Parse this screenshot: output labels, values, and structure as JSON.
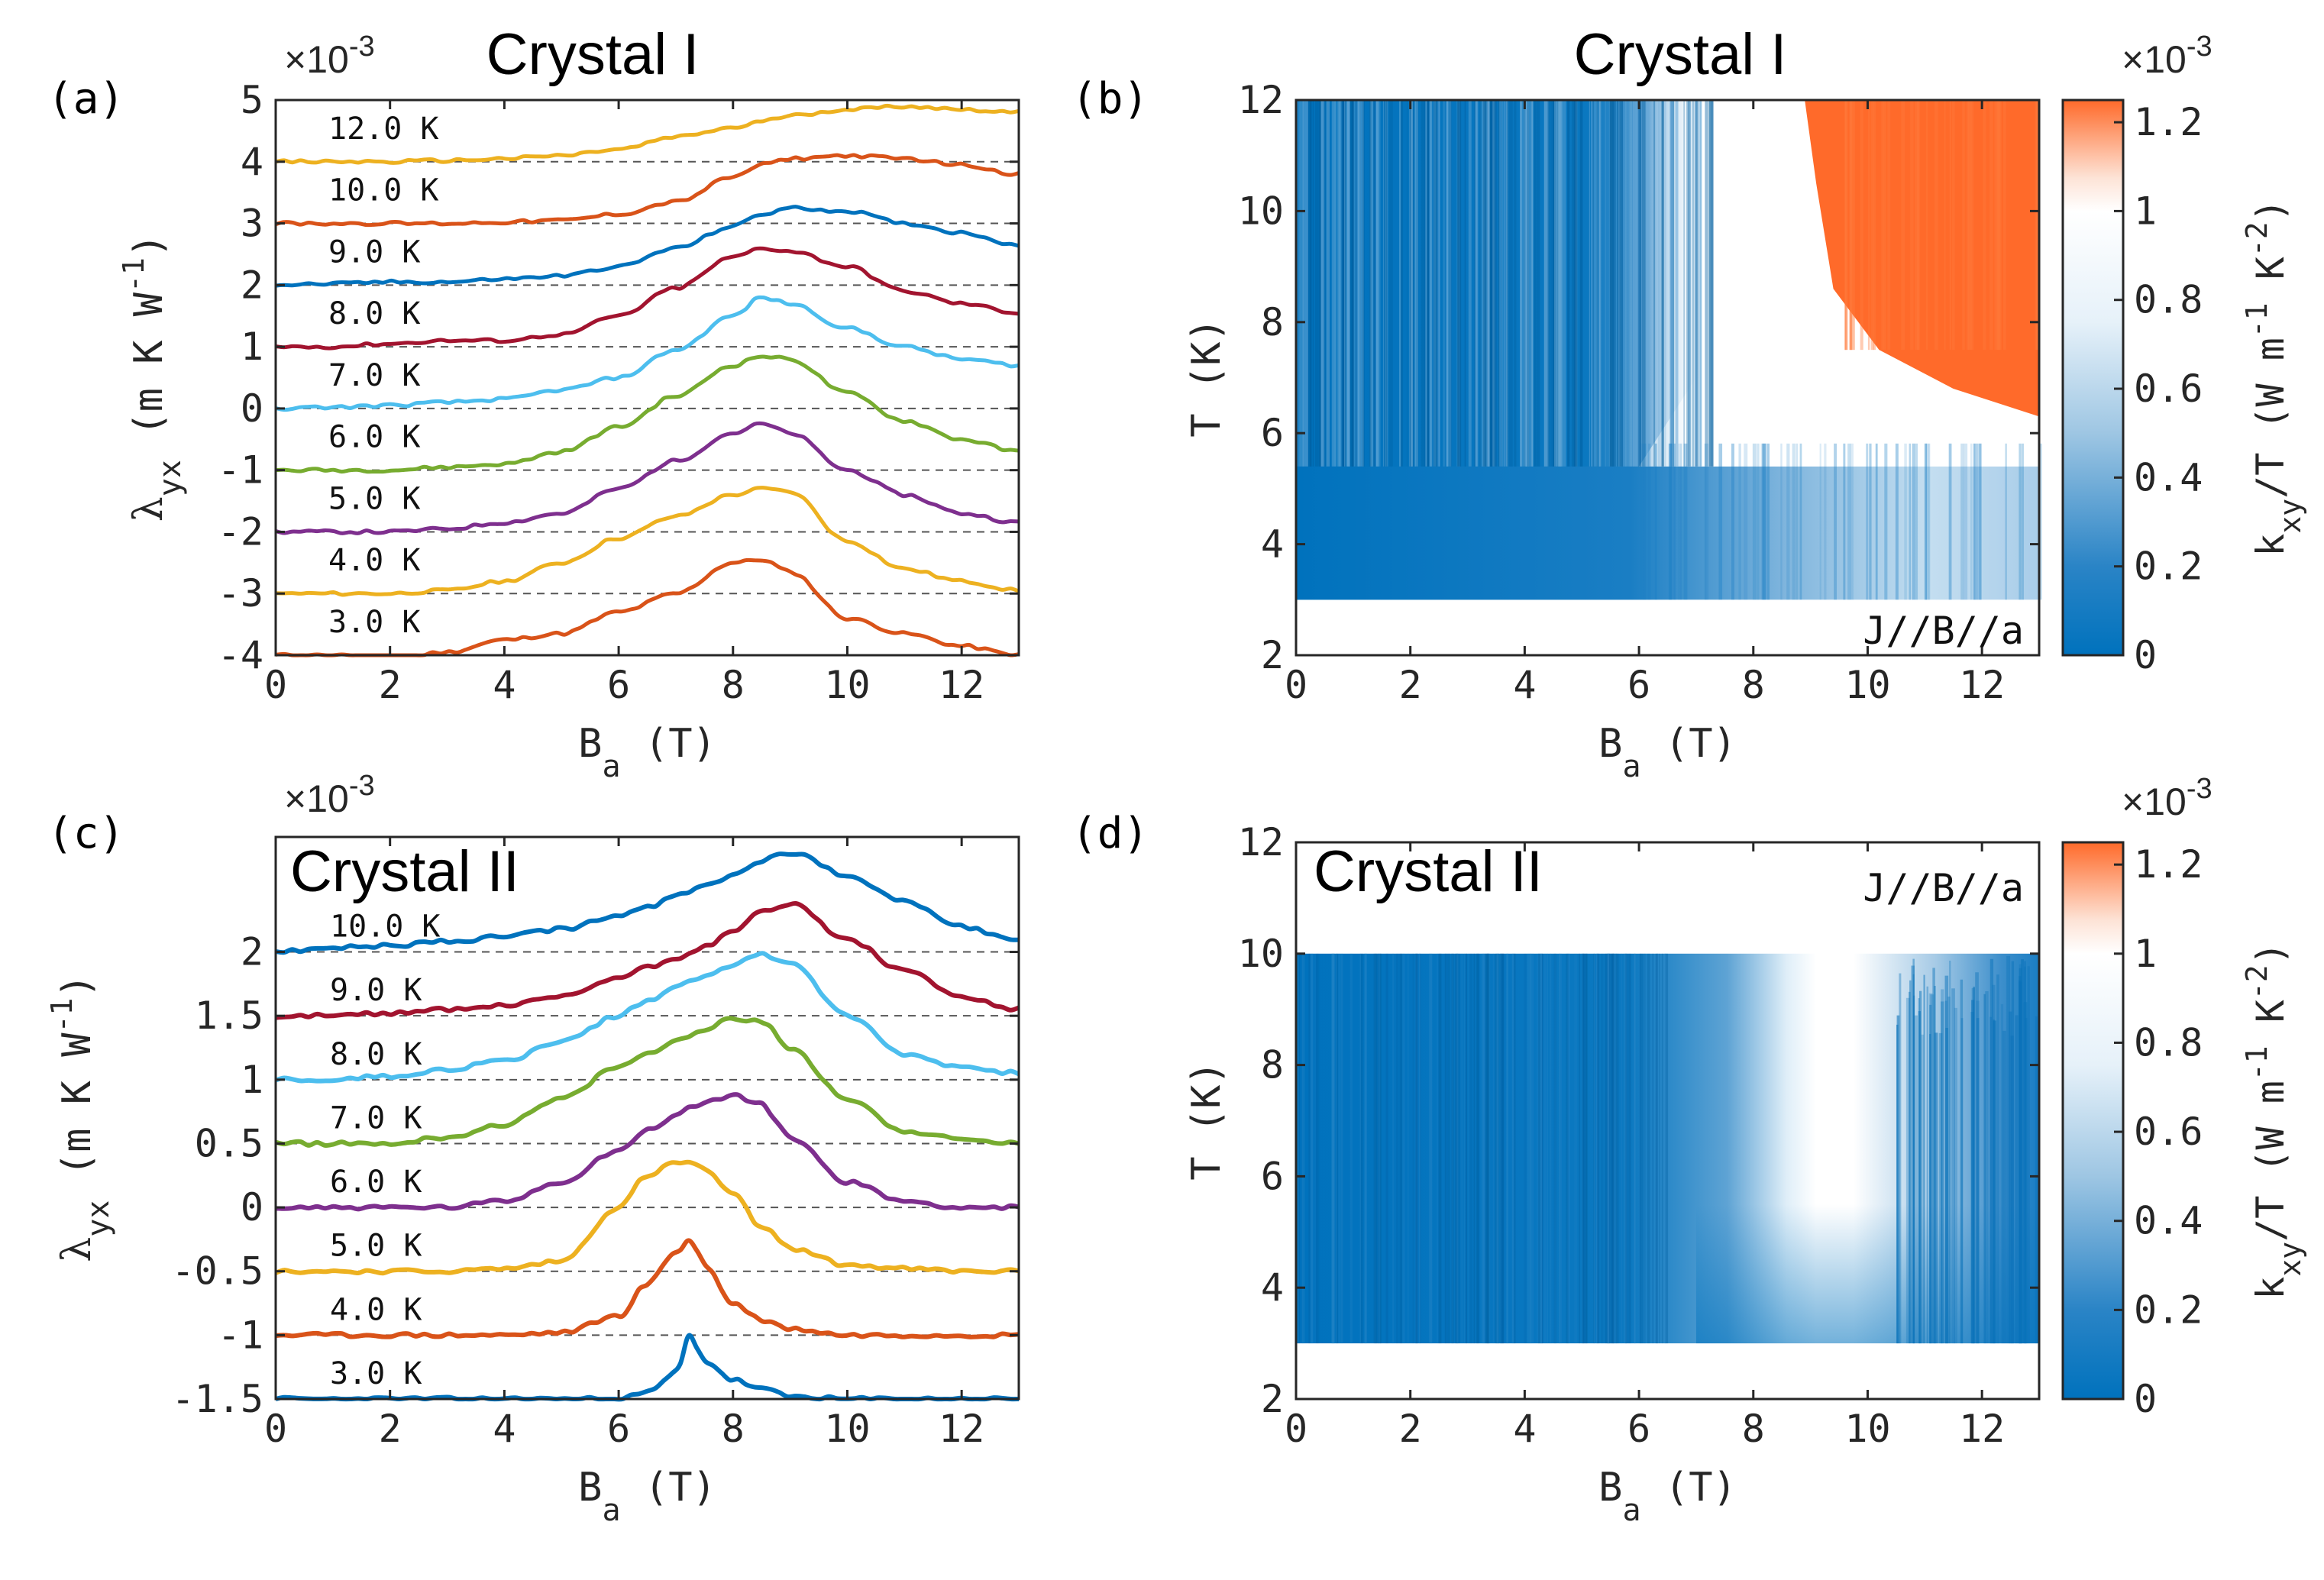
{
  "chart_data": [
    {
      "panel": "(a)",
      "type": "line",
      "title": "Crystal I",
      "xlabel_main": "B",
      "xlabel_sub": "a",
      "xlabel_unit": "(T)",
      "ylabel_main": "λ",
      "ylabel_sub": "yx",
      "ylabel_unit_pre": "(m K W",
      "ylabel_unit_sup": "-1",
      "ylabel_unit_post": ")",
      "exponent_label": "×10",
      "exponent_power": "-3",
      "xlim": [
        0,
        13
      ],
      "ylim": [
        -4,
        5
      ],
      "xticks": [
        0,
        2,
        4,
        6,
        8,
        10,
        12
      ],
      "xtick_labels": [
        "0",
        "2",
        "4",
        "6",
        "8",
        "10",
        "12"
      ],
      "yticks": [
        -4,
        -3,
        -2,
        -1,
        0,
        1,
        2,
        3,
        4,
        5
      ],
      "ytick_labels": [
        "-4",
        "-3",
        "-2",
        "-1",
        "0",
        "1",
        "2",
        "3",
        "4",
        "5"
      ],
      "x": [
        0,
        1,
        2,
        3,
        4,
        5,
        6,
        7,
        8,
        8.5,
        9,
        10,
        11,
        12,
        13
      ],
      "series": [
        {
          "name": "3.0 K",
          "offset": -4,
          "color": "#D95319",
          "values": [
            0,
            0,
            -0.05,
            0.05,
            0.25,
            0.35,
            0.7,
            1.0,
            1.5,
            1.55,
            1.35,
            0.6,
            0.35,
            0.15,
            0
          ]
        },
        {
          "name": "4.0 K",
          "offset": -3,
          "color": "#EDB120",
          "values": [
            0,
            0,
            0,
            0.05,
            0.2,
            0.5,
            0.9,
            1.25,
            1.6,
            1.7,
            1.65,
            0.85,
            0.4,
            0.2,
            0.05
          ]
        },
        {
          "name": "5.0 K",
          "offset": -2,
          "color": "#7E2F8E",
          "values": [
            0,
            0,
            0,
            0.05,
            0.15,
            0.3,
            0.7,
            1.15,
            1.6,
            1.75,
            1.6,
            1.0,
            0.6,
            0.3,
            0.15
          ]
        },
        {
          "name": "6.0 K",
          "offset": -1,
          "color": "#77AC30",
          "values": [
            0,
            0,
            0,
            0.05,
            0.1,
            0.3,
            0.7,
            1.2,
            1.7,
            1.85,
            1.8,
            1.25,
            0.8,
            0.5,
            0.3
          ]
        },
        {
          "name": "7.0 K",
          "offset": 0,
          "color": "#4DBEEE",
          "values": [
            0,
            0.02,
            0.05,
            0.1,
            0.15,
            0.3,
            0.5,
            0.95,
            1.5,
            1.8,
            1.7,
            1.3,
            1.0,
            0.8,
            0.7
          ]
        },
        {
          "name": "8.0 K",
          "offset": 1,
          "color": "#A2142F",
          "values": [
            0,
            0,
            0.05,
            0.1,
            0.1,
            0.2,
            0.5,
            0.95,
            1.45,
            1.6,
            1.55,
            1.3,
            0.9,
            0.7,
            0.55
          ]
        },
        {
          "name": "9.0 K",
          "offset": 2,
          "color": "#0072BD",
          "values": [
            0,
            0.02,
            0.05,
            0.05,
            0.1,
            0.15,
            0.3,
            0.6,
            0.95,
            1.15,
            1.25,
            1.2,
            1.0,
            0.85,
            0.65
          ]
        },
        {
          "name": "10.0 K",
          "offset": 3,
          "color": "#D95319",
          "values": [
            0,
            0,
            0,
            0,
            0.02,
            0.05,
            0.15,
            0.35,
            0.75,
            0.95,
            1.05,
            1.1,
            1.05,
            0.95,
            0.8
          ]
        },
        {
          "name": "12.0 K",
          "offset": 4,
          "color": "#EDB120",
          "values": [
            0,
            0,
            0,
            0.02,
            0.05,
            0.1,
            0.2,
            0.4,
            0.55,
            0.65,
            0.75,
            0.85,
            0.9,
            0.85,
            0.8
          ]
        }
      ]
    },
    {
      "panel": "(b)",
      "type": "heatmap",
      "title": "Crystal I",
      "annotation": "J//B//a",
      "xlabel_main": "B",
      "xlabel_sub": "a",
      "xlabel_unit": "(T)",
      "ylabel": "T (K)",
      "xlim": [
        0,
        13
      ],
      "ylim": [
        2,
        12
      ],
      "data_T_range": [
        3,
        12
      ],
      "xticks": [
        0,
        2,
        4,
        6,
        8,
        10,
        12
      ],
      "xtick_labels": [
        "0",
        "2",
        "4",
        "6",
        "8",
        "10",
        "12"
      ],
      "yticks": [
        2,
        4,
        6,
        8,
        10,
        12
      ],
      "ytick_labels": [
        "2",
        "4",
        "6",
        "8",
        "10",
        "12"
      ],
      "colorbar": {
        "range": [
          0,
          1.25
        ],
        "ticks": [
          0,
          0.2,
          0.4,
          0.6,
          0.8,
          1,
          1.2
        ],
        "tick_labels": [
          "0",
          "0.2",
          "0.4",
          "0.6",
          "0.8",
          "1",
          "1.2"
        ],
        "exponent_label": "×10",
        "exponent_power": "-3",
        "label_k": "k",
        "label_sub": "xy",
        "label_mid": "/T (W m",
        "label_sup1": "-1",
        "label_k2": " K",
        "label_sup2": "-2",
        "label_end": ")"
      }
    },
    {
      "panel": "(c)",
      "type": "line",
      "title": "Crystal II",
      "xlabel_main": "B",
      "xlabel_sub": "a",
      "xlabel_unit": "(T)",
      "ylabel_main": "λ",
      "ylabel_sub": "yx",
      "ylabel_unit_pre": "(m K W",
      "ylabel_unit_sup": "-1",
      "ylabel_unit_post": ")",
      "exponent_label": "×10",
      "exponent_power": "-3",
      "xlim": [
        0,
        13
      ],
      "ylim": [
        -1.5,
        2.9
      ],
      "xticks": [
        0,
        2,
        4,
        6,
        8,
        10,
        12
      ],
      "xtick_labels": [
        "0",
        "2",
        "4",
        "6",
        "8",
        "10",
        "12"
      ],
      "yticks": [
        -1.5,
        -1,
        -0.5,
        0,
        0.5,
        1,
        1.5,
        2
      ],
      "ytick_labels": [
        "-1.5",
        "-1",
        "-0.5",
        "0",
        "0.5",
        "1",
        "1.5",
        "2"
      ],
      "x": [
        0,
        1,
        2,
        3,
        4,
        5,
        6,
        6.5,
        7,
        7.25,
        7.5,
        8,
        8.5,
        9,
        10,
        11,
        12,
        13
      ],
      "series": [
        {
          "name": "3.0 K",
          "offset": -1.5,
          "color": "#0072BD",
          "values": [
            0,
            0,
            0,
            0,
            0,
            0,
            0,
            0.05,
            0.2,
            0.5,
            0.3,
            0.15,
            0.08,
            0.02,
            0,
            0,
            0,
            0
          ]
        },
        {
          "name": "4.0 K",
          "offset": -1,
          "color": "#D95319",
          "values": [
            0,
            0,
            0,
            0,
            0,
            0.02,
            0.15,
            0.4,
            0.65,
            0.75,
            0.55,
            0.25,
            0.12,
            0.05,
            0,
            0,
            0,
            0
          ]
        },
        {
          "name": "5.0 K",
          "offset": -0.5,
          "color": "#EDB120",
          "values": [
            0,
            0,
            0,
            0,
            0.02,
            0.08,
            0.5,
            0.75,
            0.85,
            0.85,
            0.8,
            0.6,
            0.35,
            0.18,
            0.05,
            0.02,
            0,
            0
          ]
        },
        {
          "name": "6.0 K",
          "offset": 0,
          "color": "#7E2F8E",
          "values": [
            0,
            0,
            0,
            0,
            0.05,
            0.2,
            0.45,
            0.6,
            0.72,
            0.78,
            0.82,
            0.88,
            0.8,
            0.55,
            0.2,
            0.05,
            0,
            0
          ]
        },
        {
          "name": "7.0 K",
          "offset": 0.5,
          "color": "#77AC30",
          "values": [
            0,
            0,
            0,
            0.05,
            0.15,
            0.35,
            0.6,
            0.7,
            0.8,
            0.85,
            0.9,
            0.98,
            0.95,
            0.75,
            0.35,
            0.1,
            0.03,
            0
          ]
        },
        {
          "name": "8.0 K",
          "offset": 1,
          "color": "#4DBEEE",
          "values": [
            0,
            0,
            0.03,
            0.08,
            0.15,
            0.3,
            0.5,
            0.62,
            0.72,
            0.78,
            0.82,
            0.9,
            0.98,
            0.92,
            0.5,
            0.2,
            0.1,
            0.05
          ]
        },
        {
          "name": "9.0 K",
          "offset": 1.5,
          "color": "#A2142F",
          "values": [
            0,
            0,
            0.02,
            0.05,
            0.08,
            0.15,
            0.3,
            0.38,
            0.45,
            0.5,
            0.55,
            0.65,
            0.82,
            0.88,
            0.6,
            0.35,
            0.15,
            0.05
          ]
        },
        {
          "name": "10.0 K",
          "offset": 2,
          "color": "#0072BD",
          "values": [
            0,
            0.03,
            0.05,
            0.08,
            0.12,
            0.18,
            0.28,
            0.35,
            0.43,
            0.48,
            0.52,
            0.6,
            0.72,
            0.78,
            0.6,
            0.4,
            0.2,
            0.08
          ]
        }
      ]
    },
    {
      "panel": "(d)",
      "type": "heatmap",
      "title": "Crystal II",
      "annotation": "J//B//a",
      "xlabel_main": "B",
      "xlabel_sub": "a",
      "xlabel_unit": "(T)",
      "ylabel": "T (K)",
      "xlim": [
        0,
        13
      ],
      "ylim": [
        2,
        12
      ],
      "data_T_range": [
        3,
        10
      ],
      "xticks": [
        0,
        2,
        4,
        6,
        8,
        10,
        12
      ],
      "xtick_labels": [
        "0",
        "2",
        "4",
        "6",
        "8",
        "10",
        "12"
      ],
      "yticks": [
        2,
        4,
        6,
        8,
        10,
        12
      ],
      "ytick_labels": [
        "2",
        "4",
        "6",
        "8",
        "10",
        "12"
      ],
      "colorbar": {
        "range": [
          0,
          1.25
        ],
        "ticks": [
          0,
          0.2,
          0.4,
          0.6,
          0.8,
          1,
          1.2
        ],
        "tick_labels": [
          "0",
          "0.2",
          "0.4",
          "0.6",
          "0.8",
          "1",
          "1.2"
        ],
        "exponent_label": "×10",
        "exponent_power": "-3",
        "label_k": "k",
        "label_sub": "xy",
        "label_mid": "/T (W m",
        "label_sup1": "-1",
        "label_k2": " K",
        "label_sup2": "-2",
        "label_end": ")"
      }
    }
  ]
}
